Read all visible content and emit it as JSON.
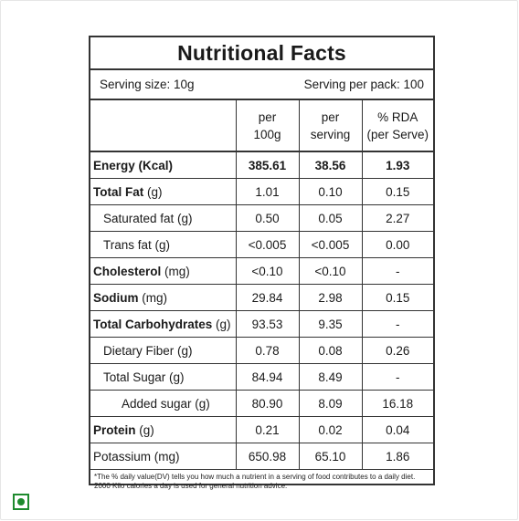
{
  "panel": {
    "title": "Nutritional Facts",
    "serving_size": "Serving size: 10g",
    "serving_per_pack": "Serving per pack: 100"
  },
  "table": {
    "headers": [
      {
        "line1": "",
        "line2": ""
      },
      {
        "line1": "per",
        "line2": "100g"
      },
      {
        "line1": "per",
        "line2": "serving"
      },
      {
        "line1": "% RDA",
        "line2": "(per Serve)"
      }
    ],
    "rows": [
      {
        "main": "Energy (Kcal)",
        "unit": "",
        "per100g": "385.61",
        "perServing": "38.56",
        "rda": "1.93"
      },
      {
        "main": "Total Fat",
        "unit": " (g)",
        "per100g": "1.01",
        "perServing": "0.10",
        "rda": "0.15"
      },
      {
        "main": "Saturated fat (g)",
        "unit": "",
        "per100g": "0.50",
        "perServing": "0.05",
        "rda": "2.27"
      },
      {
        "main": "Trans fat (g)",
        "unit": "",
        "per100g": "<0.005",
        "perServing": "<0.005",
        "rda": "0.00"
      },
      {
        "main": "Cholesterol",
        "unit": "  (mg)",
        "per100g": "<0.10",
        "perServing": "<0.10",
        "rda": "-"
      },
      {
        "main": "Sodium",
        "unit": "  (mg)",
        "per100g": "29.84",
        "perServing": "2.98",
        "rda": "0.15"
      },
      {
        "main": "Total Carbohydrates",
        "unit": " (g)",
        "per100g": "93.53",
        "perServing": "9.35",
        "rda": "-"
      },
      {
        "main": "Dietary Fiber (g)",
        "unit": "",
        "per100g": "0.78",
        "perServing": "0.08",
        "rda": "0.26"
      },
      {
        "main": "Total Sugar (g)",
        "unit": "",
        "per100g": "84.94",
        "perServing": "8.49",
        "rda": "-"
      },
      {
        "main": "Added sugar  (g)",
        "unit": "",
        "per100g": "80.90",
        "perServing": "8.09",
        "rda": "16.18"
      },
      {
        "main": "Protein",
        "unit": "  (g)",
        "per100g": "0.21",
        "perServing": "0.02",
        "rda": "0.04"
      },
      {
        "main": "Potassium (mg)",
        "unit": "",
        "per100g": "650.98",
        "perServing": "65.10",
        "rda": "1.86"
      }
    ]
  },
  "footnote": "*The % daily value(DV) tells you how much a nutrient in a serving of food contributes to a daily diet. 2000 Kilo calories a day is used for general nutrition advice.",
  "badge": {
    "icon": "veg-mark-icon",
    "color": "#1e8a2e"
  }
}
